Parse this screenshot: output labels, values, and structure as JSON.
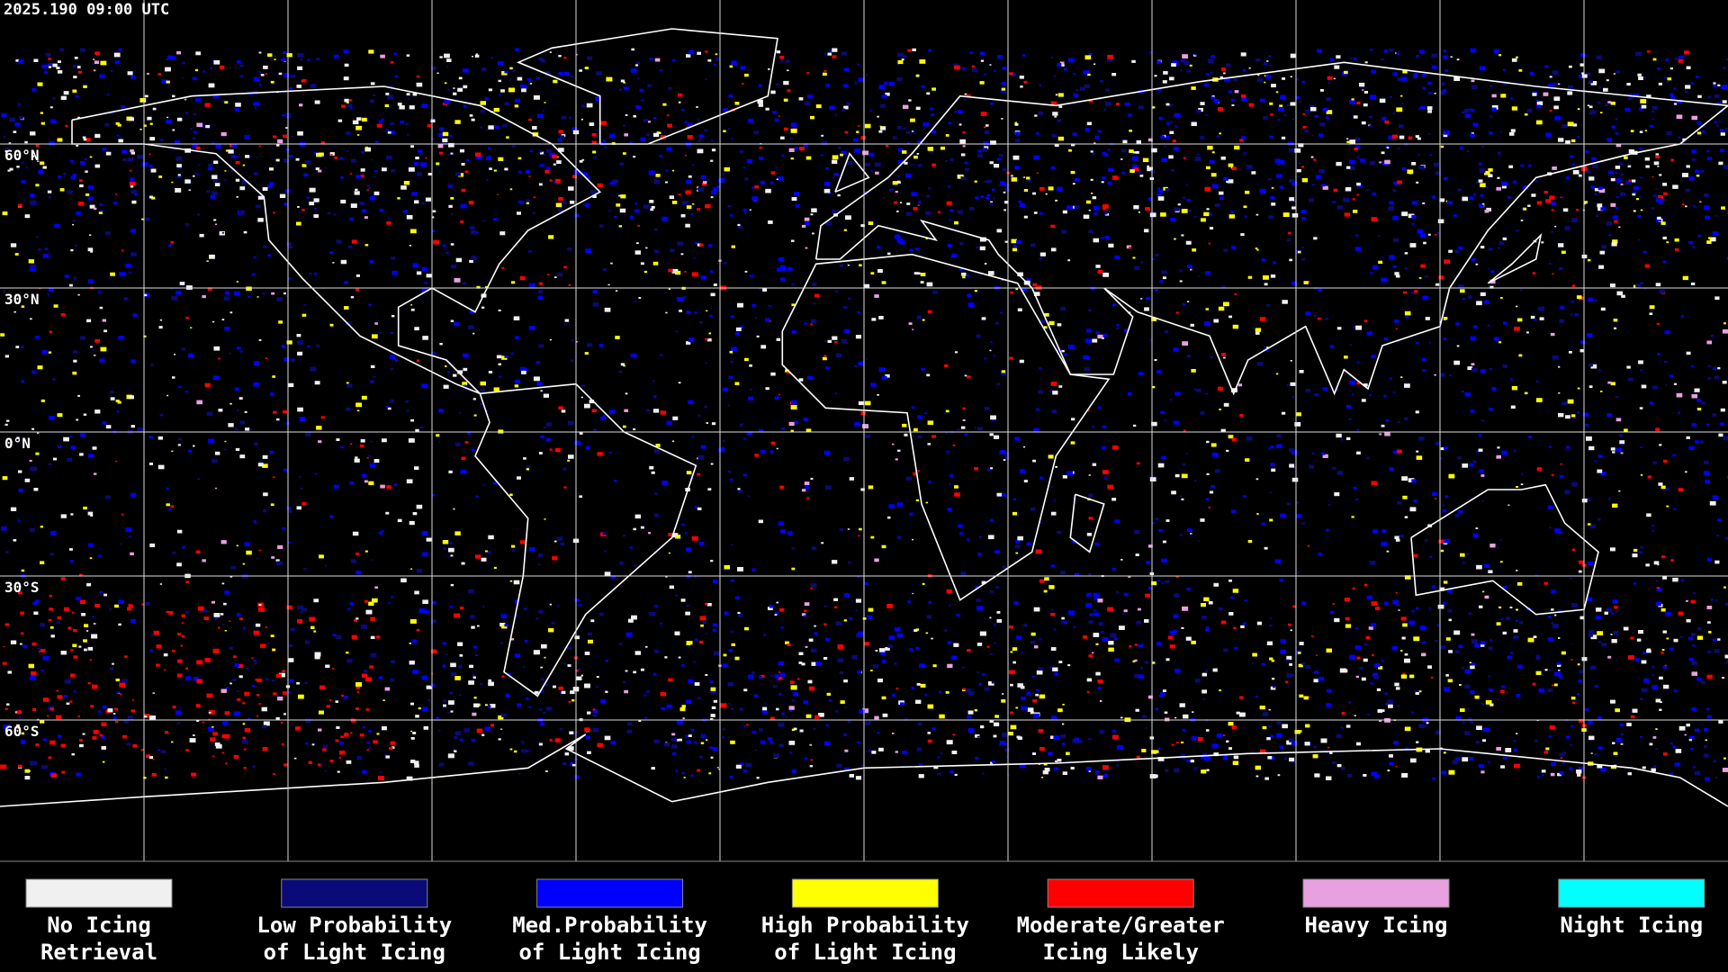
{
  "header": {
    "title": "2025.190 09:00 UTC"
  },
  "map": {
    "latitude_labels": [
      "60°N",
      "30°N",
      "0°N",
      "30°S",
      "60°S"
    ]
  },
  "legend": {
    "items": [
      {
        "lines": [
          "No Icing",
          "Retrieval"
        ],
        "color": "#f0f0f0"
      },
      {
        "lines": [
          "Low Probability",
          "of Light Icing"
        ],
        "color": "#0a0a78"
      },
      {
        "lines": [
          "Med.Probability",
          "of Light Icing"
        ],
        "color": "#0000ff"
      },
      {
        "lines": [
          "High Probability",
          "of Light Icing"
        ],
        "color": "#ffff00"
      },
      {
        "lines": [
          "Moderate/Greater",
          "Icing Likely"
        ],
        "color": "#ff0000"
      },
      {
        "lines": [
          "Heavy Icing"
        ],
        "color": "#e8a0e0"
      },
      {
        "lines": [
          "Night Icing"
        ],
        "color": "#00ffff"
      }
    ]
  }
}
